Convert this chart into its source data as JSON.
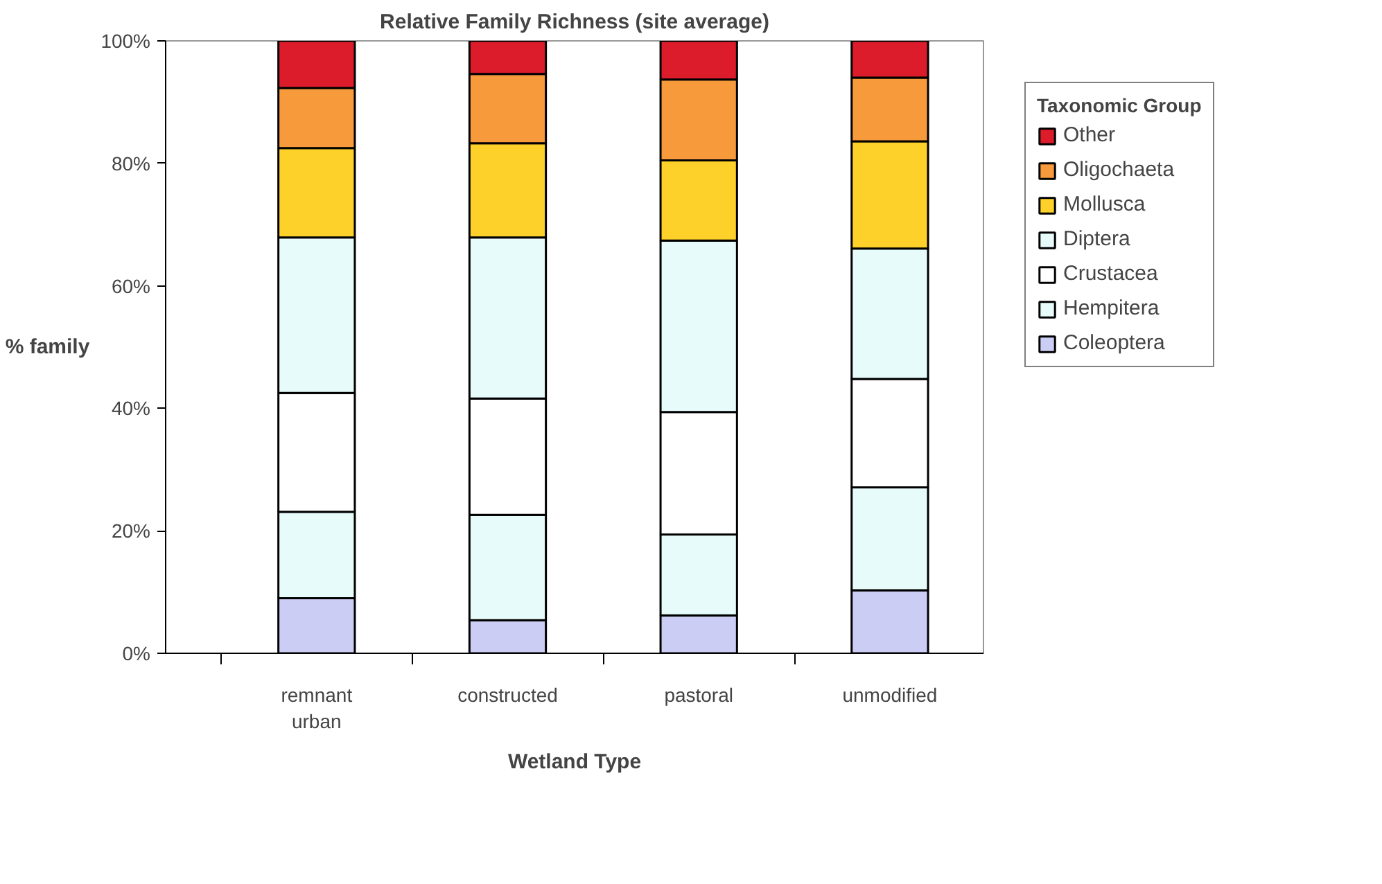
{
  "chart_data": {
    "type": "bar",
    "stacked": true,
    "title": "Relative Family Richness (site average)",
    "xlabel": "Wetland Type",
    "ylabel": "% family",
    "legend_title": "Taxonomic Group",
    "legend": "right",
    "grid": false,
    "categories": [
      "remnant urban",
      "constructed",
      "pastoral",
      "unmodified"
    ],
    "ylim": [
      0,
      100
    ],
    "yticks": [
      {
        "value": 0,
        "label": "0%"
      },
      {
        "value": 20,
        "label": "20%"
      },
      {
        "value": 40,
        "label": "40%"
      },
      {
        "value": 60,
        "label": "60%"
      },
      {
        "value": 80,
        "label": "80%"
      },
      {
        "value": 100,
        "label": "100%"
      }
    ],
    "series": [
      {
        "name": "Coleoptera",
        "color": "#cccdf5",
        "values": [
          9.0,
          5.4,
          6.2,
          10.3
        ]
      },
      {
        "name": "Hempitera",
        "color": "#e8fbfb",
        "values": [
          14.1,
          17.2,
          13.2,
          16.8
        ]
      },
      {
        "name": "Crustacea",
        "color": "#ffffff",
        "values": [
          19.4,
          19.0,
          20.0,
          17.7
        ]
      },
      {
        "name": "Diptera",
        "color": "#e8fbfb",
        "values": [
          25.4,
          26.3,
          28.0,
          21.3
        ]
      },
      {
        "name": "Mollusca",
        "color": "#fdd02a",
        "values": [
          14.6,
          15.4,
          13.1,
          17.5
        ]
      },
      {
        "name": "Oligochaeta",
        "color": "#f79a3c",
        "values": [
          9.8,
          11.3,
          13.2,
          10.4
        ]
      },
      {
        "name": "Other",
        "color": "#dd1c2b",
        "values": [
          7.7,
          5.4,
          6.3,
          6.0
        ]
      }
    ]
  }
}
